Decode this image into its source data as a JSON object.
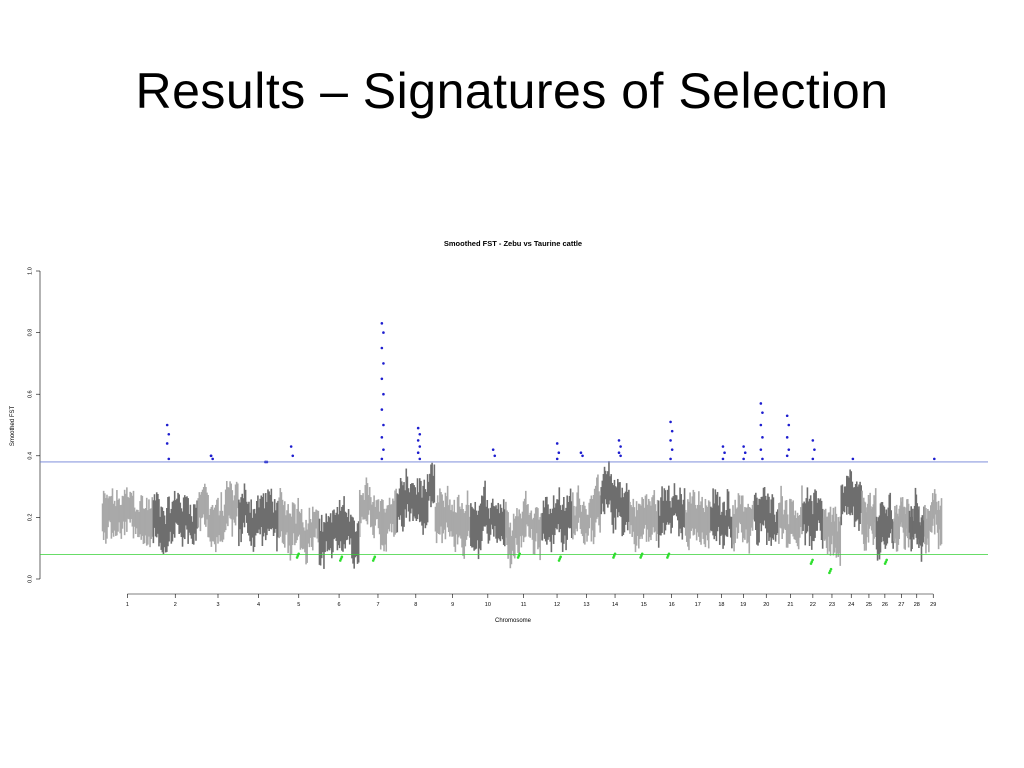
{
  "slide": {
    "title": "Results – Signatures of Selection"
  },
  "colors": {
    "dark": "#6e6e6e",
    "light": "#a9a9a9",
    "upper_line": "#6d7fd6",
    "lower_line": "#36d236",
    "outlier_high": "#1d1dcf",
    "outlier_low": "#2ee02e"
  },
  "chart_data": {
    "type": "scatter",
    "title": "Smoothed FST - Zebu vs Taurine cattle",
    "xlabel": "Chromosome",
    "ylabel": "Smoothed FST",
    "ylim": [
      0,
      1.0
    ],
    "yticks": [
      "0.0",
      "0.2",
      "0.4",
      "0.6",
      "0.8",
      "1.0"
    ],
    "thresholds": {
      "upper": 0.38,
      "lower": 0.08
    },
    "grid": false,
    "x": [
      "1",
      "2",
      "3",
      "4",
      "5",
      "6",
      "7",
      "8",
      "9",
      "10",
      "11",
      "12",
      "13",
      "14",
      "15",
      "16",
      "17",
      "18",
      "19",
      "20",
      "21",
      "22",
      "23",
      "24",
      "25",
      "26",
      "27",
      "28",
      "29"
    ],
    "series": [
      {
        "name": "1",
        "baseline": 0.19,
        "low": 0.12,
        "high": 0.3,
        "peaks": []
      },
      {
        "name": "2",
        "baseline": 0.2,
        "low": 0.1,
        "high": 0.36,
        "peaks": [
          0.5,
          0.47,
          0.44,
          0.39
        ]
      },
      {
        "name": "3",
        "baseline": 0.19,
        "low": 0.1,
        "high": 0.35,
        "peaks": [
          0.4,
          0.39,
          0.4
        ]
      },
      {
        "name": "4",
        "baseline": 0.2,
        "low": 0.1,
        "high": 0.35,
        "peaks": [
          0.38,
          0.38
        ]
      },
      {
        "name": "5",
        "baseline": 0.18,
        "low": 0.07,
        "high": 0.36,
        "peaks": [
          0.43,
          0.4
        ]
      },
      {
        "name": "6",
        "baseline": 0.15,
        "low": 0.06,
        "high": 0.3,
        "peaks": []
      },
      {
        "name": "7",
        "baseline": 0.2,
        "low": 0.06,
        "high": 0.34,
        "peaks": [
          0.83,
          0.8,
          0.75,
          0.7,
          0.65,
          0.6,
          0.55,
          0.5,
          0.46,
          0.42,
          0.39
        ]
      },
      {
        "name": "8",
        "baseline": 0.24,
        "low": 0.12,
        "high": 0.38,
        "peaks": [
          0.49,
          0.47,
          0.45,
          0.43,
          0.41,
          0.39
        ]
      },
      {
        "name": "9",
        "baseline": 0.18,
        "low": 0.09,
        "high": 0.3,
        "peaks": []
      },
      {
        "name": "10",
        "baseline": 0.2,
        "low": 0.1,
        "high": 0.37,
        "peaks": [
          0.42,
          0.4
        ]
      },
      {
        "name": "11",
        "baseline": 0.19,
        "low": 0.07,
        "high": 0.32,
        "peaks": []
      },
      {
        "name": "12",
        "baseline": 0.2,
        "low": 0.06,
        "high": 0.36,
        "peaks": [
          0.44,
          0.41,
          0.39
        ]
      },
      {
        "name": "13",
        "baseline": 0.21,
        "low": 0.1,
        "high": 0.38,
        "peaks": [
          0.41,
          0.4
        ]
      },
      {
        "name": "14",
        "baseline": 0.25,
        "low": 0.07,
        "high": 0.4,
        "peaks": [
          0.45,
          0.43,
          0.41,
          0.4
        ]
      },
      {
        "name": "15",
        "baseline": 0.19,
        "low": 0.07,
        "high": 0.32,
        "peaks": []
      },
      {
        "name": "16",
        "baseline": 0.21,
        "low": 0.07,
        "high": 0.38,
        "peaks": [
          0.51,
          0.48,
          0.45,
          0.42,
          0.39
        ]
      },
      {
        "name": "17",
        "baseline": 0.2,
        "low": 0.08,
        "high": 0.33,
        "peaks": []
      },
      {
        "name": "18",
        "baseline": 0.2,
        "low": 0.1,
        "high": 0.36,
        "peaks": [
          0.43,
          0.41,
          0.39
        ]
      },
      {
        "name": "19",
        "baseline": 0.2,
        "low": 0.1,
        "high": 0.36,
        "peaks": [
          0.43,
          0.41,
          0.39
        ]
      },
      {
        "name": "20",
        "baseline": 0.2,
        "low": 0.08,
        "high": 0.37,
        "peaks": [
          0.57,
          0.54,
          0.5,
          0.46,
          0.42,
          0.39
        ]
      },
      {
        "name": "21",
        "baseline": 0.21,
        "low": 0.08,
        "high": 0.37,
        "peaks": [
          0.53,
          0.5,
          0.46,
          0.42,
          0.4
        ]
      },
      {
        "name": "22",
        "baseline": 0.18,
        "low": 0.05,
        "high": 0.34,
        "peaks": [
          0.45,
          0.42,
          0.39
        ]
      },
      {
        "name": "23",
        "baseline": 0.17,
        "low": 0.02,
        "high": 0.3,
        "peaks": []
      },
      {
        "name": "24",
        "baseline": 0.22,
        "low": 0.12,
        "high": 0.38,
        "peaks": [
          0.39
        ]
      },
      {
        "name": "25",
        "baseline": 0.2,
        "low": 0.1,
        "high": 0.33,
        "peaks": []
      },
      {
        "name": "26",
        "baseline": 0.16,
        "low": 0.05,
        "high": 0.28,
        "peaks": []
      },
      {
        "name": "27",
        "baseline": 0.17,
        "low": 0.1,
        "high": 0.27,
        "peaks": []
      },
      {
        "name": "28",
        "baseline": 0.19,
        "low": 0.1,
        "high": 0.37,
        "peaks": []
      },
      {
        "name": "29",
        "baseline": 0.2,
        "low": 0.12,
        "high": 0.36,
        "peaks": [
          0.39
        ]
      }
    ]
  }
}
